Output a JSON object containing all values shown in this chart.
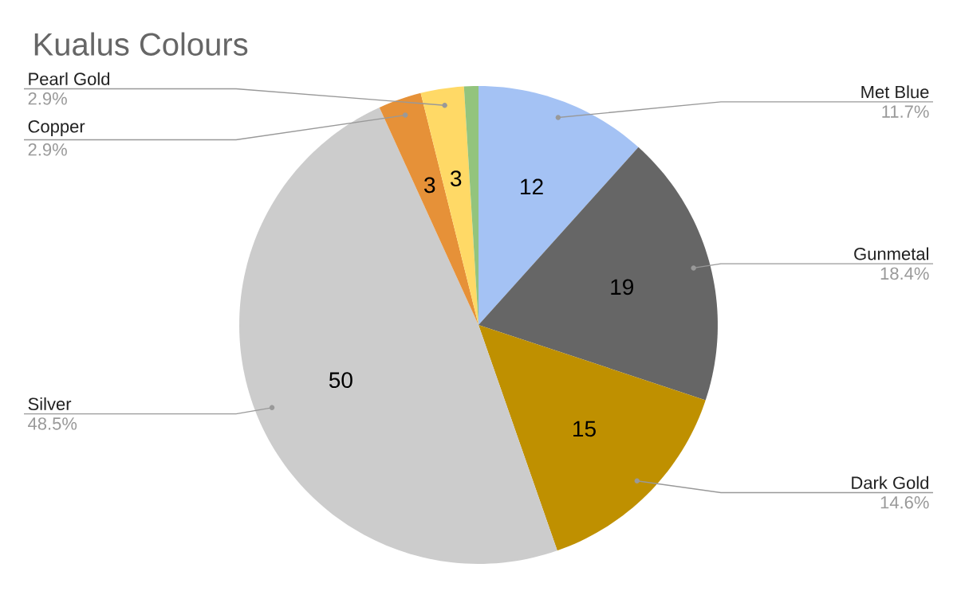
{
  "chart_data": {
    "type": "pie",
    "title": "Kualus Colours",
    "categories": [
      "Met Blue",
      "Gunmetal",
      "Dark Gold",
      "Silver",
      "Copper",
      "Pearl Gold",
      null
    ],
    "values": [
      12,
      19,
      15,
      50,
      3,
      3,
      1
    ],
    "colors": [
      "#a4c2f4",
      "#666666",
      "#bf9000",
      "#cccccc",
      "#e69138",
      "#ffd966",
      "#93c47d"
    ],
    "value_labels": [
      "12",
      "19",
      "15",
      "50",
      "3",
      "3",
      null
    ],
    "annotations": [
      "11.7%",
      "18.4%",
      "14.6%",
      "48.5%",
      "2.9%",
      "2.9%"
    ]
  }
}
